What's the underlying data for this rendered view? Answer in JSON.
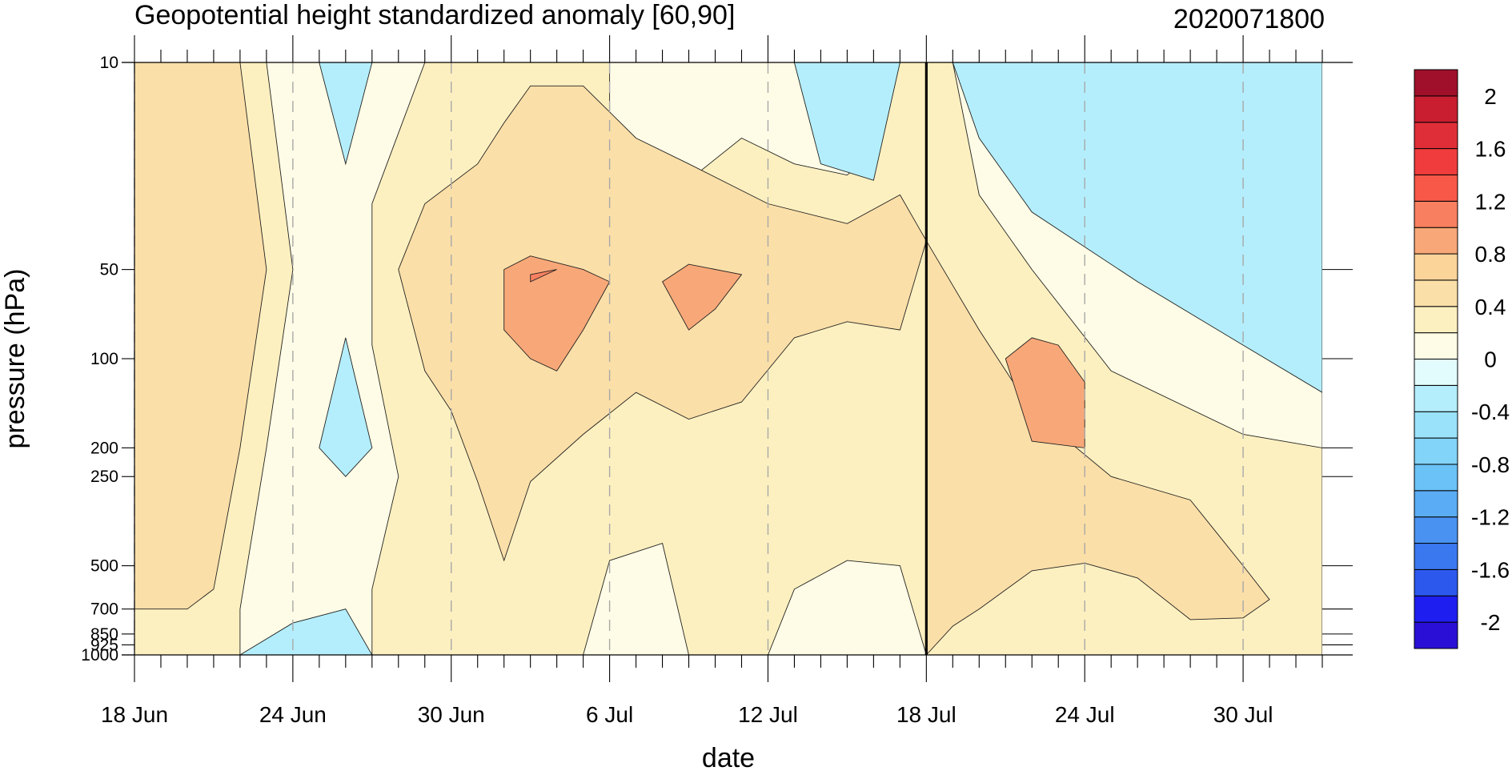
{
  "chart_data": {
    "type": "contour",
    "title": "Geopotential height standardized anomaly [60,90]",
    "date_stamp": "2020071800",
    "xlabel": "date",
    "ylabel": "pressure (hPa)",
    "x_range": [
      "2020-06-18",
      "2020-08-02"
    ],
    "y_scale": "log",
    "y_range": [
      1000,
      10
    ],
    "x_ticks": [
      {
        "date": "2020-06-18",
        "label": "18 Jun"
      },
      {
        "date": "2020-06-24",
        "label": "24 Jun"
      },
      {
        "date": "2020-06-30",
        "label": "30 Jun"
      },
      {
        "date": "2020-07-06",
        "label": "6 Jul"
      },
      {
        "date": "2020-07-12",
        "label": "12 Jul"
      },
      {
        "date": "2020-07-18",
        "label": "18 Jul"
      },
      {
        "date": "2020-07-24",
        "label": "24 Jul"
      },
      {
        "date": "2020-07-30",
        "label": "30 Jul"
      }
    ],
    "y_ticks": [
      {
        "value": 10,
        "label": "10"
      },
      {
        "value": 50,
        "label": "50"
      },
      {
        "value": 100,
        "label": "100"
      },
      {
        "value": 200,
        "label": "200"
      },
      {
        "value": 250,
        "label": "250"
      },
      {
        "value": 500,
        "label": "500"
      },
      {
        "value": 700,
        "label": "700"
      },
      {
        "value": 850,
        "label": "850"
      },
      {
        "value": 925,
        "label": "925"
      },
      {
        "value": 1000,
        "label": "1000"
      }
    ],
    "current_date_line": "2020-07-18",
    "colorbar": {
      "levels": [
        -2.2,
        -2.0,
        -1.8,
        -1.6,
        -1.4,
        -1.2,
        -1.0,
        -0.8,
        -0.6,
        -0.4,
        -0.2,
        0.0,
        0.2,
        0.4,
        0.6,
        0.8,
        1.0,
        1.2,
        1.4,
        1.6,
        1.8,
        2.0,
        2.2
      ],
      "colors": [
        "#2a10d6",
        "#1e1ef0",
        "#2c58ee",
        "#3a78f0",
        "#4a92f2",
        "#5aacf4",
        "#6ac2f6",
        "#82d4f8",
        "#9ae2fa",
        "#b4eefc",
        "#e2fbfd",
        "#fefce6",
        "#fdf0c0",
        "#fbdfa8",
        "#fbd49a",
        "#f8a878",
        "#f88060",
        "#f85848",
        "#f03c3c",
        "#e02e38",
        "#c81e30",
        "#a0102a"
      ],
      "labels": [
        {
          "value": 2.0,
          "label": "2"
        },
        {
          "value": 1.6,
          "label": "1.6"
        },
        {
          "value": 1.2,
          "label": "1.2"
        },
        {
          "value": 0.8,
          "label": "0.8"
        },
        {
          "value": 0.4,
          "label": "0.4"
        },
        {
          "value": 0.0,
          "label": "0"
        },
        {
          "value": -0.4,
          "label": "-0.4"
        },
        {
          "value": -0.8,
          "label": "-0.8"
        },
        {
          "value": -1.2,
          "label": "-1.2"
        },
        {
          "value": -1.6,
          "label": "-1.6"
        },
        {
          "value": -2.0,
          "label": "-2"
        }
      ]
    },
    "anomaly_regions": [
      {
        "color": "#fdf0c0",
        "level": 0.2,
        "points": [
          [
            "2020-06-18",
            1000
          ],
          [
            "2020-08-02",
            1000
          ],
          [
            "2020-08-02",
            10
          ],
          [
            "2020-06-18",
            10
          ]
        ]
      },
      {
        "color": "#fefce6",
        "level": 0.0,
        "points": [
          [
            "2020-06-22",
            1000
          ],
          [
            "2020-06-22",
            700
          ],
          [
            "2020-06-23",
            200
          ],
          [
            "2020-06-24",
            50
          ],
          [
            "2020-06-23",
            10
          ],
          [
            "2020-06-29",
            10
          ],
          [
            "2020-06-27",
            30
          ],
          [
            "2020-06-27",
            90
          ],
          [
            "2020-06-28",
            250
          ],
          [
            "2020-06-27",
            600
          ],
          [
            "2020-06-27",
            1000
          ]
        ]
      },
      {
        "color": "#fefce6",
        "level": 0.0,
        "points": [
          [
            "2020-07-05",
            1000
          ],
          [
            "2020-07-06",
            480
          ],
          [
            "2020-07-08",
            420
          ],
          [
            "2020-07-09",
            1000
          ]
        ]
      },
      {
        "color": "#fefce6",
        "level": 0.0,
        "points": [
          [
            "2020-07-12",
            1000
          ],
          [
            "2020-07-13",
            600
          ],
          [
            "2020-07-15",
            480
          ],
          [
            "2020-07-17",
            500
          ],
          [
            "2020-07-18",
            1000
          ]
        ]
      },
      {
        "color": "#fefce6",
        "level": 0.0,
        "points": [
          [
            "2020-07-06",
            10
          ],
          [
            "2020-07-06",
            22
          ],
          [
            "2020-07-07",
            30
          ],
          [
            "2020-07-09",
            25
          ],
          [
            "2020-07-11",
            18
          ],
          [
            "2020-07-13",
            22
          ],
          [
            "2020-07-15",
            24
          ],
          [
            "2020-07-16",
            20
          ],
          [
            "2020-07-17",
            10
          ]
        ]
      },
      {
        "color": "#fefce6",
        "level": 0.0,
        "points": [
          [
            "2020-07-18",
            10
          ],
          [
            "2020-08-02",
            10
          ],
          [
            "2020-08-02",
            200
          ],
          [
            "2020-07-30",
            180
          ],
          [
            "2020-07-25",
            110
          ],
          [
            "2020-07-22",
            50
          ],
          [
            "2020-07-20",
            28
          ],
          [
            "2020-07-19",
            10
          ]
        ]
      },
      {
        "color": "#fbdfa8",
        "level": 0.4,
        "points": [
          [
            "2020-06-18",
            10
          ],
          [
            "2020-06-22",
            10
          ],
          [
            "2020-06-23",
            50
          ],
          [
            "2020-06-22",
            200
          ],
          [
            "2020-06-21",
            600
          ],
          [
            "2020-06-20",
            700
          ],
          [
            "2020-06-18",
            700
          ]
        ]
      },
      {
        "color": "#fbdfa8",
        "level": 0.4,
        "points": [
          [
            "2020-06-28",
            50
          ],
          [
            "2020-06-29",
            30
          ],
          [
            "2020-07-01",
            22
          ],
          [
            "2020-07-02",
            16
          ],
          [
            "2020-07-03",
            12
          ],
          [
            "2020-07-05",
            12
          ],
          [
            "2020-07-07",
            18
          ],
          [
            "2020-07-09",
            22
          ],
          [
            "2020-07-12",
            30
          ],
          [
            "2020-07-15",
            35
          ],
          [
            "2020-07-17",
            28
          ],
          [
            "2020-07-18",
            40
          ],
          [
            "2020-07-17",
            80
          ],
          [
            "2020-07-15",
            75
          ],
          [
            "2020-07-13",
            85
          ],
          [
            "2020-07-11",
            140
          ],
          [
            "2020-07-09",
            160
          ],
          [
            "2020-07-07",
            130
          ],
          [
            "2020-07-05",
            180
          ],
          [
            "2020-07-03",
            260
          ],
          [
            "2020-07-02",
            480
          ],
          [
            "2020-07-01",
            260
          ],
          [
            "2020-06-30",
            150
          ],
          [
            "2020-06-29",
            110
          ]
        ]
      },
      {
        "color": "#fbdfa8",
        "level": 0.4,
        "points": [
          [
            "2020-07-18",
            40
          ],
          [
            "2020-07-20",
            80
          ],
          [
            "2020-07-22",
            150
          ],
          [
            "2020-07-25",
            250
          ],
          [
            "2020-07-28",
            300
          ],
          [
            "2020-07-30",
            500
          ],
          [
            "2020-07-31",
            650
          ],
          [
            "2020-07-30",
            750
          ],
          [
            "2020-07-28",
            760
          ],
          [
            "2020-07-26",
            550
          ],
          [
            "2020-07-24",
            490
          ],
          [
            "2020-07-22",
            520
          ],
          [
            "2020-07-20",
            700
          ],
          [
            "2020-07-19",
            800
          ],
          [
            "2020-07-18",
            1000
          ]
        ]
      },
      {
        "color": "#f8a878",
        "level": 0.8,
        "points": [
          [
            "2020-07-02",
            50
          ],
          [
            "2020-07-03",
            45
          ],
          [
            "2020-07-05",
            50
          ],
          [
            "2020-07-06",
            55
          ],
          [
            "2020-07-05",
            80
          ],
          [
            "2020-07-04",
            110
          ],
          [
            "2020-07-03",
            100
          ],
          [
            "2020-07-02",
            80
          ]
        ]
      },
      {
        "color": "#f8a878",
        "level": 0.8,
        "points": [
          [
            "2020-07-08",
            55
          ],
          [
            "2020-07-09",
            48
          ],
          [
            "2020-07-11",
            52
          ],
          [
            "2020-07-10",
            68
          ],
          [
            "2020-07-09",
            80
          ]
        ]
      },
      {
        "color": "#f8a878",
        "level": 0.8,
        "points": [
          [
            "2020-07-21",
            100
          ],
          [
            "2020-07-22",
            85
          ],
          [
            "2020-07-23",
            90
          ],
          [
            "2020-07-24",
            120
          ],
          [
            "2020-07-24",
            200
          ],
          [
            "2020-07-22",
            190
          ]
        ]
      },
      {
        "color": "#f88060",
        "level": 1.2,
        "points": [
          [
            "2020-07-03",
            52
          ],
          [
            "2020-07-04",
            50
          ],
          [
            "2020-07-03",
            55
          ]
        ]
      },
      {
        "color": "#b4eefc",
        "level": -0.2,
        "points": [
          [
            "2020-06-25",
            10
          ],
          [
            "2020-06-27",
            10
          ],
          [
            "2020-06-26",
            22
          ]
        ]
      },
      {
        "color": "#b4eefc",
        "level": -0.2,
        "points": [
          [
            "2020-06-25",
            200
          ],
          [
            "2020-06-26",
            85
          ],
          [
            "2020-06-27",
            200
          ],
          [
            "2020-06-26",
            250
          ]
        ]
      },
      {
        "color": "#b4eefc",
        "level": -0.2,
        "points": [
          [
            "2020-06-22",
            1000
          ],
          [
            "2020-06-24",
            780
          ],
          [
            "2020-06-26",
            700
          ],
          [
            "2020-06-27",
            1000
          ]
        ]
      },
      {
        "color": "#b4eefc",
        "level": -0.2,
        "points": [
          [
            "2020-07-13",
            10
          ],
          [
            "2020-07-17",
            10
          ],
          [
            "2020-07-16",
            25
          ],
          [
            "2020-07-14",
            22
          ]
        ]
      },
      {
        "color": "#b4eefc",
        "level": -0.2,
        "points": [
          [
            "2020-07-19",
            10
          ],
          [
            "2020-08-02",
            10
          ],
          [
            "2020-08-02",
            130
          ],
          [
            "2020-07-30",
            90
          ],
          [
            "2020-07-26",
            55
          ],
          [
            "2020-07-22",
            32
          ],
          [
            "2020-07-20",
            18
          ]
        ]
      }
    ]
  }
}
